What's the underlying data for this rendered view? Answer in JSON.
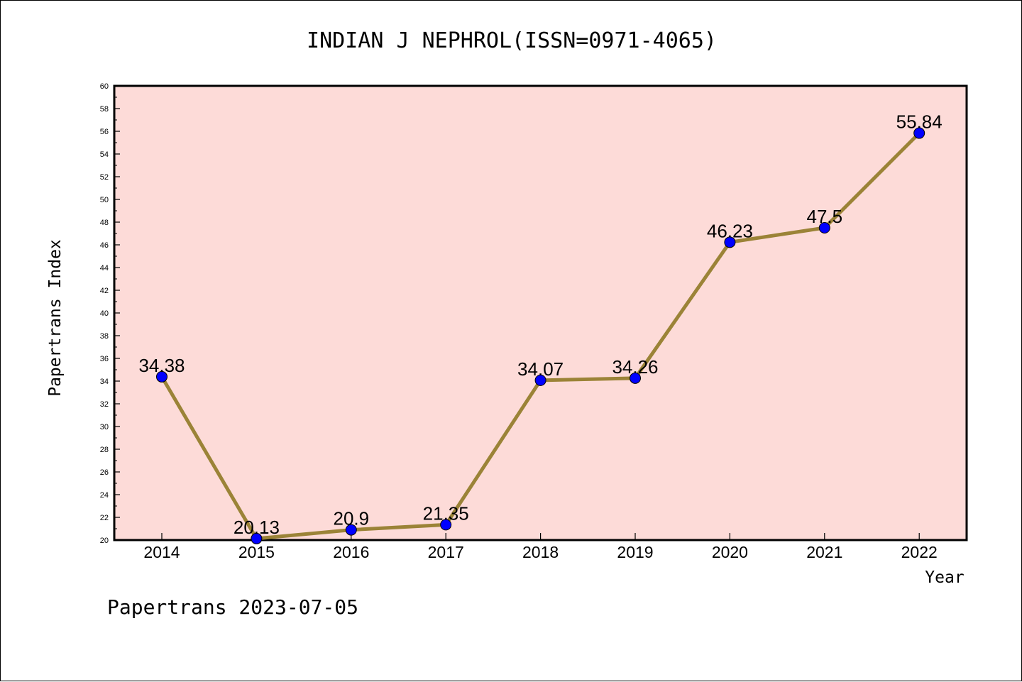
{
  "chart_data": {
    "type": "line",
    "title": "INDIAN J NEPHROL(ISSN=0971-4065)",
    "xlabel": "Year",
    "ylabel": "Papertrans Index",
    "categories": [
      "2014",
      "2015",
      "2016",
      "2017",
      "2018",
      "2019",
      "2020",
      "2021",
      "2022"
    ],
    "values": [
      34.38,
      20.13,
      20.9,
      21.35,
      34.07,
      34.26,
      46.23,
      47.5,
      55.84
    ],
    "data_labels": [
      "34.38",
      "20.13",
      "20.9",
      "21.35",
      "34.07",
      "34.26",
      "46.23",
      "47.5",
      "55.84"
    ],
    "ylim": [
      20,
      60
    ],
    "yticks": [
      "20",
      "22",
      "24",
      "26",
      "28",
      "30",
      "32",
      "34",
      "36",
      "38",
      "40",
      "42",
      "44",
      "46",
      "48",
      "50",
      "52",
      "54",
      "56",
      "58",
      "60"
    ],
    "grid": false,
    "colors": {
      "plot_background": "#fddbd8",
      "line": "#9b8337",
      "marker": "#0000ff"
    }
  },
  "footer": "Papertrans 2023-07-05"
}
